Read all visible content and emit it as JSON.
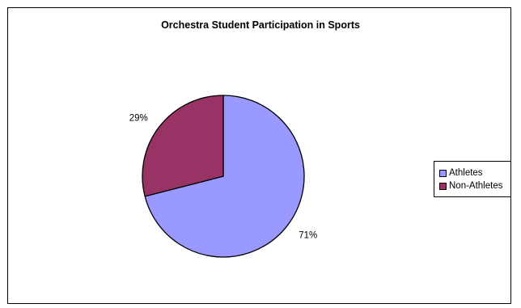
{
  "chart_data": {
    "type": "pie",
    "title": "Orchestra Student Participation in Sports",
    "categories": [
      "Athletes",
      "Non-Athletes"
    ],
    "values": [
      71,
      29
    ],
    "labels": [
      "71%",
      "29%"
    ],
    "colors": [
      "#9999ff",
      "#993366"
    ],
    "legend_position": "right"
  }
}
